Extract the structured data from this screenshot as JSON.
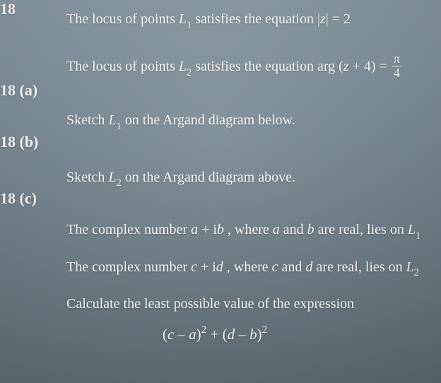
{
  "colors": {
    "text": "#ffffff",
    "bg_top": "#8a9aa4",
    "bg_bottom": "#5f6d76",
    "rule": "#ffffff"
  },
  "typography": {
    "family": "Times New Roman",
    "body_size_pt": 15,
    "qnum_size_pt": 16,
    "weight_body": "normal",
    "weight_qnum": "600"
  },
  "question": {
    "number": "18",
    "intro1_pre": "The locus of points ",
    "intro1_L": "L",
    "intro1_sub": "1",
    "intro1_mid": " satisfies the equation |",
    "intro1_z": "z",
    "intro1_post": "| = 2",
    "intro2_pre": "The locus of points ",
    "intro2_L": "L",
    "intro2_sub": "2",
    "intro2_mid": " satisfies the equation arg (",
    "intro2_z": "z",
    "intro2_plus": " + 4) = ",
    "intro2_frac_num": "π",
    "intro2_frac_den": "4"
  },
  "parts": {
    "a": {
      "label": "18 (a)",
      "pre": "Sketch ",
      "L": "L",
      "sub": "1",
      "post": " on the Argand diagram below."
    },
    "b": {
      "label": "18 (b)",
      "pre": "Sketch ",
      "L": "L",
      "sub": "2",
      "post": " on the Argand diagram above."
    },
    "c": {
      "label": "18 (c)",
      "line1_pre": "The complex number ",
      "line1_a": "a",
      "line1_plus": " + i",
      "line1_b": "b",
      "line1_mid": " , where ",
      "line1_a2": "a",
      "line1_and": " and ",
      "line1_b2": "b",
      "line1_post": " are real, lies on ",
      "line1_L": "L",
      "line1_sub": "1",
      "line2_pre": "The complex number ",
      "line2_c": "c",
      "line2_plus": " + i",
      "line2_d": "d",
      "line2_mid": " , where ",
      "line2_c2": "c",
      "line2_and": " and ",
      "line2_d2": "d",
      "line2_post": " are real, lies on ",
      "line2_L": "L",
      "line2_sub": "2",
      "line3": "Calculate the least possible value of the expression",
      "expr_open1": "(",
      "expr_c": "c",
      "expr_minus1": " – ",
      "expr_a": "a",
      "expr_close1": ")",
      "expr_sq1": "2",
      "expr_plus": " + (",
      "expr_d": "d",
      "expr_minus2": " – ",
      "expr_b": "b",
      "expr_close2": ")",
      "expr_sq2": "2"
    }
  }
}
